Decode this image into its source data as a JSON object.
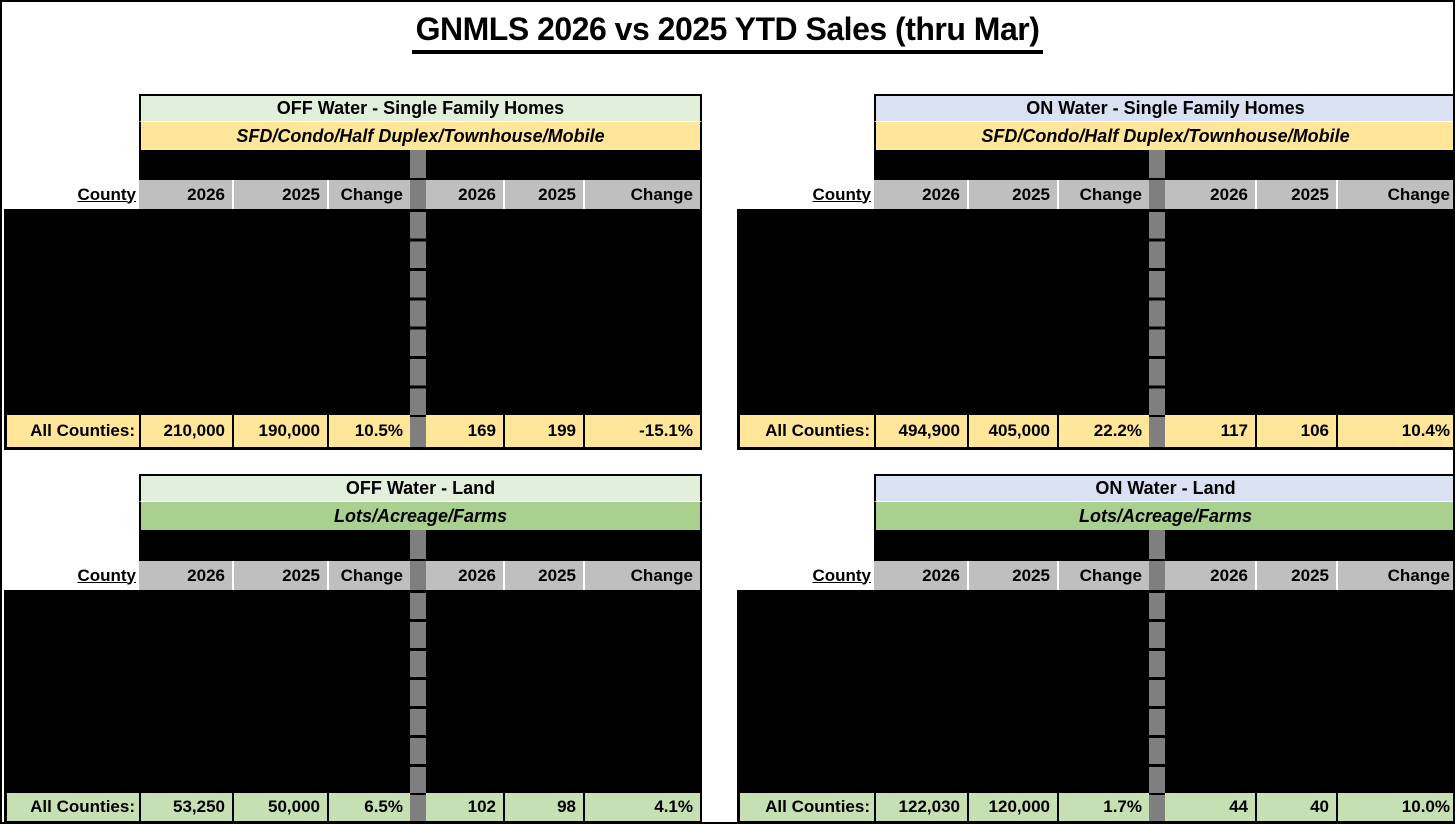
{
  "title": "GNMLS 2026 vs 2025 YTD Sales (thru Mar)",
  "colors": {
    "off_water_header_bg": "#E2EFDA",
    "on_water_header_bg": "#D9E1F2",
    "sfh_subtitle_bg": "#FFE699",
    "land_subtitle_bg": "#A9D08E",
    "sfh_totals_bg": "#FFE699",
    "land_totals_bg": "#C6E0B4",
    "column_header_bg": "#BFBFBF",
    "divider_gray": "#7F7F7F",
    "redacted_black": "#000000"
  },
  "tables": [
    {
      "header": "OFF Water - Single Family Homes",
      "subtitle": "SFD/Condo/Half Duplex/Townhouse/Mobile",
      "county_header": "County",
      "columns": [
        "2026",
        "2025",
        "Change",
        "2026",
        "2025",
        "Change"
      ],
      "redacted_rows": 7,
      "totals_label": "All Counties:",
      "totals": [
        "210,000",
        "190,000",
        "10.5%",
        "169",
        "199",
        "-15.1%"
      ],
      "header_bg": "#E2EFDA",
      "subtitle_bg": "#FFE699",
      "totals_bg": "#FFE699"
    },
    {
      "header": "ON Water - Single Family Homes",
      "subtitle": "SFD/Condo/Half Duplex/Townhouse/Mobile",
      "county_header": "County",
      "columns": [
        "2026",
        "2025",
        "Change",
        "2026",
        "2025",
        "Change"
      ],
      "redacted_rows": 7,
      "totals_label": "All Counties:",
      "totals": [
        "494,900",
        "405,000",
        "22.2%",
        "117",
        "106",
        "10.4%"
      ],
      "header_bg": "#D9E1F2",
      "subtitle_bg": "#FFE699",
      "totals_bg": "#FFE699"
    },
    {
      "header": "OFF Water - Land",
      "subtitle": "Lots/Acreage/Farms",
      "county_header": "County",
      "columns": [
        "2026",
        "2025",
        "Change",
        "2026",
        "2025",
        "Change"
      ],
      "redacted_rows": 7,
      "totals_label": "All Counties:",
      "totals": [
        "53,250",
        "50,000",
        "6.5%",
        "102",
        "98",
        "4.1%"
      ],
      "header_bg": "#E2EFDA",
      "subtitle_bg": "#A9D08E",
      "totals_bg": "#C6E0B4"
    },
    {
      "header": "ON Water - Land",
      "subtitle": "Lots/Acreage/Farms",
      "county_header": "County",
      "columns": [
        "2026",
        "2025",
        "Change",
        "2026",
        "2025",
        "Change"
      ],
      "redacted_rows": 7,
      "totals_label": "All Counties:",
      "totals": [
        "122,030",
        "120,000",
        "1.7%",
        "44",
        "40",
        "10.0%"
      ],
      "header_bg": "#D9E1F2",
      "subtitle_bg": "#A9D08E",
      "totals_bg": "#C6E0B4"
    }
  ],
  "chart_data": [
    {
      "type": "table",
      "title": "OFF Water - Single Family Homes",
      "subtitle": "SFD/Condo/Half Duplex/Townhouse/Mobile",
      "columns": [
        "County",
        "2026",
        "2025",
        "Change",
        "2026",
        "2025",
        "Change"
      ],
      "rows": [
        [
          "All Counties:",
          "210,000",
          "190,000",
          "10.5%",
          "169",
          "199",
          "-15.1%"
        ]
      ],
      "redacted_rows": 7
    },
    {
      "type": "table",
      "title": "ON Water - Single Family Homes",
      "subtitle": "SFD/Condo/Half Duplex/Townhouse/Mobile",
      "columns": [
        "County",
        "2026",
        "2025",
        "Change",
        "2026",
        "2025",
        "Change"
      ],
      "rows": [
        [
          "All Counties:",
          "494,900",
          "405,000",
          "22.2%",
          "117",
          "106",
          "10.4%"
        ]
      ],
      "redacted_rows": 7
    },
    {
      "type": "table",
      "title": "OFF Water - Land",
      "subtitle": "Lots/Acreage/Farms",
      "columns": [
        "County",
        "2026",
        "2025",
        "Change",
        "2026",
        "2025",
        "Change"
      ],
      "rows": [
        [
          "All Counties:",
          "53,250",
          "50,000",
          "6.5%",
          "102",
          "98",
          "4.1%"
        ]
      ],
      "redacted_rows": 7
    },
    {
      "type": "table",
      "title": "ON Water - Land",
      "subtitle": "Lots/Acreage/Farms",
      "columns": [
        "County",
        "2026",
        "2025",
        "Change",
        "2026",
        "2025",
        "Change"
      ],
      "rows": [
        [
          "All Counties:",
          "122,030",
          "120,000",
          "1.7%",
          "44",
          "40",
          "10.0%"
        ]
      ],
      "redacted_rows": 7
    }
  ]
}
